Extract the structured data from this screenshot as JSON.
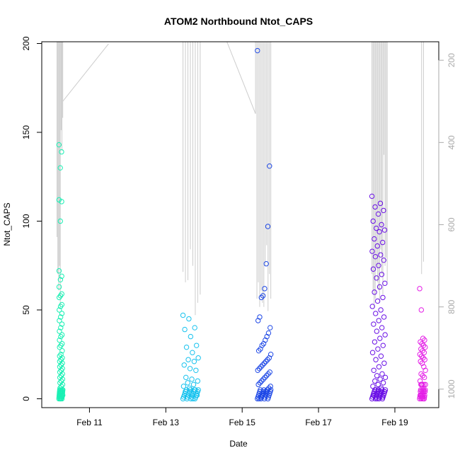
{
  "chart_data": {
    "type": "scatter",
    "title": "ATOM2 Northbound Ntot_CAPS",
    "xlabel": "Date",
    "ylabel": "Ntot_CAPS",
    "x_ticks": [
      "Feb 11",
      "Feb 13",
      "Feb 15",
      "Feb 17",
      "Feb 19"
    ],
    "x_tick_values": [
      11,
      13,
      15,
      17,
      19
    ],
    "xlim": [
      9.75,
      20.15
    ],
    "ylim": [
      -5,
      201
    ],
    "y_ticks": [
      0,
      50,
      100,
      150,
      200
    ],
    "y2_ticks": [
      200,
      400,
      600,
      800,
      1000
    ],
    "y2lim": [
      1045,
      155
    ],
    "y2_reversed": true,
    "grid": false,
    "series": [
      {
        "color": "#19f0b4",
        "t": [
          10.2,
          10.3
        ],
        "values": [
          143,
          139,
          130,
          112,
          111,
          100,
          72,
          69,
          67,
          63,
          59,
          58,
          57,
          53,
          52,
          50,
          48,
          46,
          44,
          42,
          40,
          38,
          36,
          35,
          33,
          31,
          30,
          29,
          27,
          25,
          24,
          23,
          22,
          21,
          20,
          19,
          18,
          17,
          16,
          15,
          14,
          13,
          12,
          11,
          10,
          9,
          8,
          7,
          6,
          5,
          4,
          3,
          2,
          1,
          0
        ]
      },
      {
        "color": "#17c2ee",
        "t": [
          13.45,
          13.85
        ],
        "values": [
          47,
          45,
          40,
          39,
          35,
          30,
          29,
          26,
          23,
          22,
          21,
          19,
          17,
          16,
          12,
          11,
          10,
          9,
          8,
          7,
          6,
          5,
          4,
          3,
          2,
          1,
          0
        ]
      },
      {
        "color": "#1e48e6",
        "t": [
          15.4,
          15.75
        ],
        "values": [
          196,
          131,
          97,
          76,
          62,
          58,
          57,
          46,
          44,
          40,
          37,
          35,
          33,
          31,
          30,
          28,
          27,
          25,
          23,
          22,
          21,
          20,
          19,
          18,
          17,
          16,
          15,
          14,
          13,
          12,
          11,
          10,
          9,
          8,
          7,
          6,
          5,
          4,
          3,
          2,
          1,
          0
        ]
      },
      {
        "color": "#6a10e6",
        "t": [
          18.4,
          18.75
        ],
        "values": [
          114,
          110,
          108,
          106,
          104,
          100,
          98,
          96,
          95,
          94,
          90,
          88,
          86,
          83,
          81,
          80,
          78,
          75,
          73,
          70,
          68,
          65,
          63,
          60,
          57,
          55,
          52,
          50,
          48,
          46,
          44,
          42,
          40,
          38,
          36,
          34,
          32,
          30,
          28,
          26,
          24,
          22,
          20,
          18,
          16,
          14,
          13,
          12,
          11,
          10,
          9,
          8,
          7,
          6,
          5,
          4,
          3,
          2,
          1,
          0
        ]
      },
      {
        "color": "#e41ee6",
        "t": [
          19.65,
          19.8
        ],
        "values": [
          62,
          50,
          34,
          33,
          32,
          31,
          30,
          29,
          28,
          27,
          26,
          25,
          24,
          23,
          22,
          21,
          20,
          18,
          16,
          14,
          13,
          12,
          10,
          8,
          5,
          4,
          2,
          1,
          0
        ]
      }
    ],
    "secondary_series": {
      "color": "#cccccc",
      "groups": [
        {
          "t": [
            10.15,
            10.3
          ],
          "bottoms": [
            630,
            720,
            760,
            700,
            800,
            370,
            420,
            340
          ]
        },
        {
          "t": [
            13.45,
            13.9
          ],
          "bottoms": [
            715,
            740,
            735,
            660,
            700,
            820,
            790,
            770
          ]
        },
        {
          "t": [
            15.35,
            15.75
          ],
          "bottoms": [
            330,
            780,
            740,
            800,
            760,
            790,
            800,
            700,
            650,
            810,
            720,
            780
          ]
        },
        {
          "t": [
            18.4,
            18.8
          ],
          "bottoms": [
            720,
            760,
            800,
            780,
            700,
            740,
            760,
            790,
            660,
            720,
            770,
            430,
            700,
            680,
            740
          ]
        },
        {
          "t": [
            19.7,
            19.75
          ],
          "bottoms": [
            720,
            690
          ]
        }
      ],
      "connectors": [
        {
          "t": [
            10.3,
            11.5
          ],
          "y2": [
            300,
            160
          ]
        },
        {
          "t": [
            14.6,
            15.35
          ],
          "y2": [
            150,
            330
          ]
        }
      ]
    }
  }
}
